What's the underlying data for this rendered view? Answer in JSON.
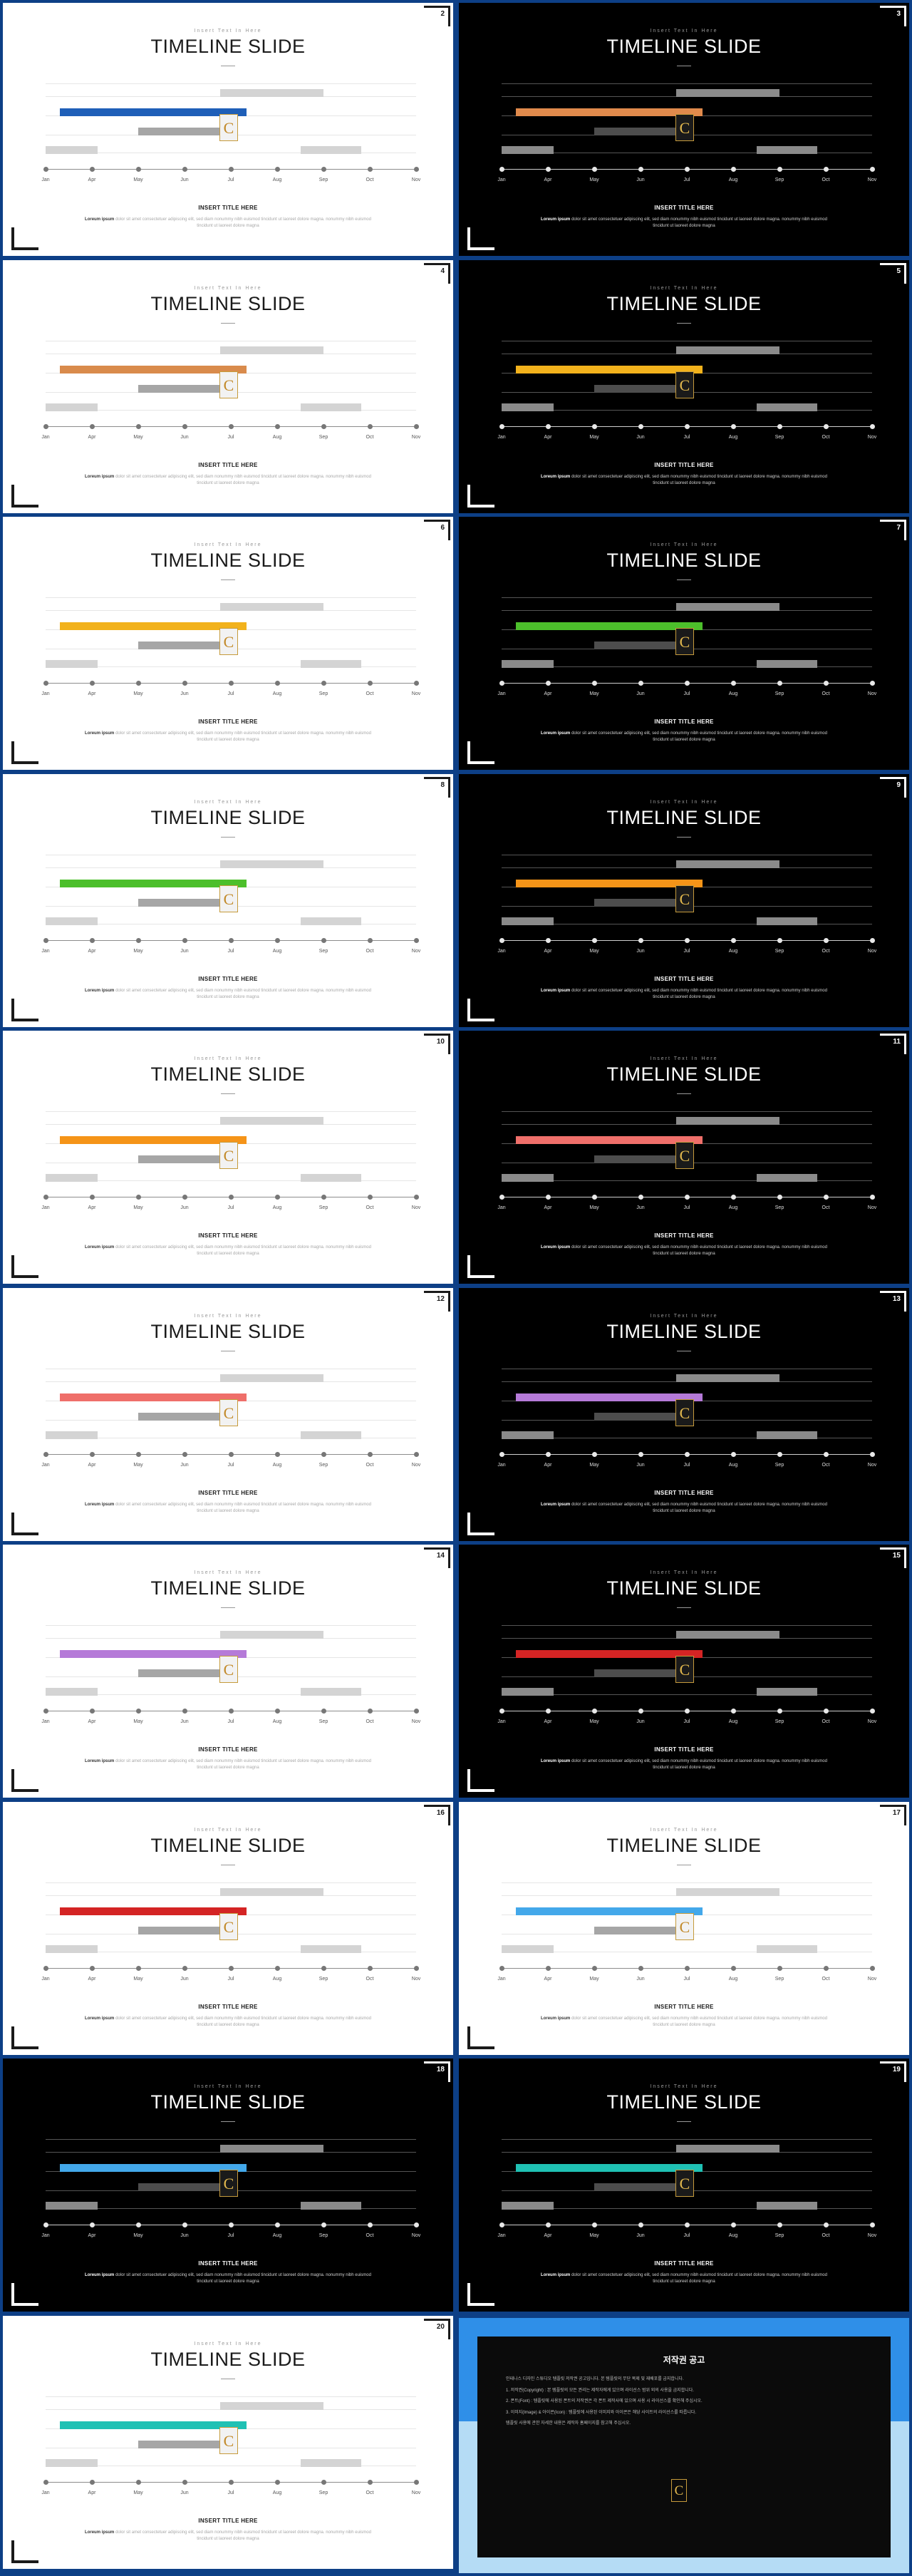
{
  "kicker": "Insert Text In Here",
  "title": "TIMELINE SLIDE",
  "months": [
    "Jan",
    "Apr",
    "May",
    "Jun",
    "Jul",
    "Aug",
    "Sep",
    "Oct",
    "Nov"
  ],
  "insert_title": "INSERT TITLE HERE",
  "body_lead": "Loreum ipsum",
  "body_text": "dolor sit amet consectetuer adipiscing elit, sed diam nonummy nibh euismod tincidunt ut laoreet dolore magna. nonummy nibh euismod tincidunt ut laoreet dolore magna",
  "marker_glyph": "C",
  "slides": [
    {
      "page": "2",
      "theme": "light",
      "accent": "#1f5fb8"
    },
    {
      "page": "3",
      "theme": "dark",
      "accent": "#e08a4c"
    },
    {
      "page": "4",
      "theme": "light",
      "accent": "#d98b4c"
    },
    {
      "page": "5",
      "theme": "dark",
      "accent": "#f2b21c"
    },
    {
      "page": "6",
      "theme": "light",
      "accent": "#f2b21c"
    },
    {
      "page": "7",
      "theme": "dark",
      "accent": "#4cbf2b"
    },
    {
      "page": "8",
      "theme": "light",
      "accent": "#4cbf2b"
    },
    {
      "page": "9",
      "theme": "dark",
      "accent": "#f59418"
    },
    {
      "page": "10",
      "theme": "light",
      "accent": "#f59418"
    },
    {
      "page": "11",
      "theme": "dark",
      "accent": "#ef6f6a"
    },
    {
      "page": "12",
      "theme": "light",
      "accent": "#ef6f6a"
    },
    {
      "page": "13",
      "theme": "dark",
      "accent": "#b57ad8"
    },
    {
      "page": "14",
      "theme": "light",
      "accent": "#b57ad8"
    },
    {
      "page": "15",
      "theme": "dark",
      "accent": "#d42424"
    },
    {
      "page": "16",
      "theme": "light",
      "accent": "#d42424"
    },
    {
      "page": "17",
      "theme": "light",
      "accent": "#43a8ea"
    },
    {
      "page": "18",
      "theme": "dark",
      "accent": "#43a8ea"
    },
    {
      "page": "19",
      "theme": "dark",
      "accent": "#1fc1b4"
    },
    {
      "page": "20",
      "theme": "light",
      "accent": "#1fc1b4"
    }
  ],
  "copyright": {
    "title": "저작권 공고",
    "paragraphs": [
      "인테나스 디자인 스튜디오 템플릿 저작권 공고입니다. 본 템플릿의 무단 복제 및 재배포를 금지합니다.",
      "1. 저작권(Copyright) : 본 템플릿의 모든 권리는 제작자에게 있으며 라이선스 범위 외의 사용을 금지합니다.",
      "2. 폰트(Font) : 템플릿에 사용된 폰트의 저작권은 각 폰트 제작사에 있으며 사용 시 라이선스를 확인해 주십시오.",
      "3. 이미지(Image) & 아이콘(Icon) : 템플릿에 사용된 이미지와 아이콘은 해당 사이트의 라이선스를 따릅니다.",
      "템플릿 사용에 관한 자세한 내용은 제작자 홈페이지를 참고해 주십시오."
    ]
  }
}
